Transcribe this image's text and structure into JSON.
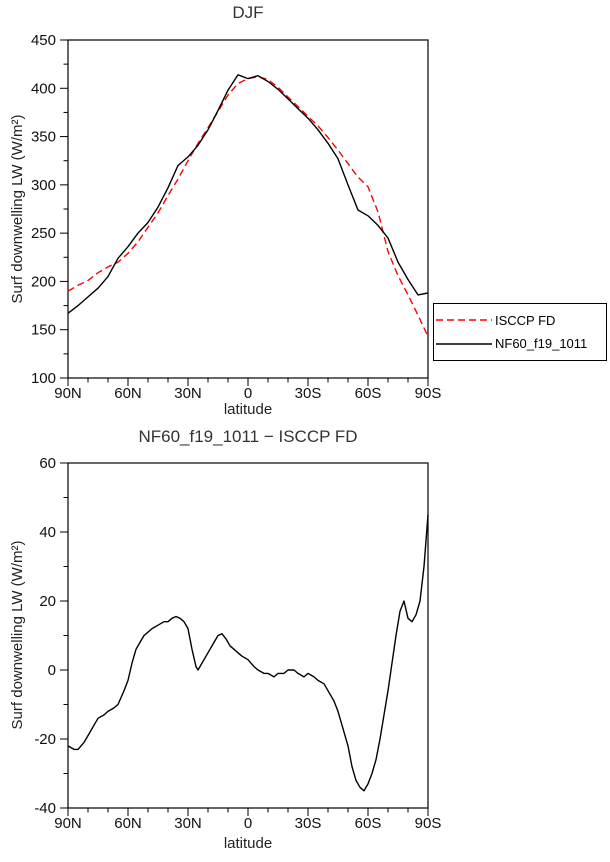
{
  "page": {
    "background": "#ffffff"
  },
  "chart_data": [
    {
      "type": "line",
      "title": "DJF",
      "xlabel": "latitude",
      "ylabel": "Surf downwelling LW (W/m²)",
      "xlim": [
        90,
        -90
      ],
      "ylim": [
        100,
        450
      ],
      "yticks": [
        100,
        150,
        200,
        250,
        300,
        350,
        400,
        450
      ],
      "xticks": {
        "values": [
          90,
          60,
          30,
          0,
          -30,
          -60,
          -90
        ],
        "labels": [
          "90N",
          "60N",
          "30N",
          "0",
          "30S",
          "60S",
          "90S"
        ]
      },
      "grid": false,
      "legend": {
        "position": "outside-right",
        "entries": [
          {
            "label": "ISCCP FD",
            "color": "#ff0000",
            "style": "dashed"
          },
          {
            "label": "NF60_f19_1011",
            "color": "#000000",
            "style": "solid"
          }
        ]
      },
      "x": [
        90,
        85,
        80,
        75,
        70,
        65,
        60,
        55,
        50,
        45,
        40,
        35,
        30,
        25,
        20,
        15,
        10,
        5,
        0,
        -5,
        -10,
        -15,
        -20,
        -25,
        -30,
        -35,
        -40,
        -45,
        -50,
        -55,
        -60,
        -65,
        -70,
        -75,
        -80,
        -85,
        -90
      ],
      "series": [
        {
          "name": "ISCCP FD",
          "color": "#ff0000",
          "style": "dashed",
          "values": [
            190,
            196,
            201,
            209,
            215,
            220,
            229,
            241,
            256,
            271,
            289,
            306,
            325,
            343,
            359,
            376,
            393,
            405,
            410,
            412,
            409,
            401,
            391,
            381,
            371,
            361,
            349,
            336,
            322,
            308,
            298,
            272,
            231,
            206,
            186,
            165,
            143
          ]
        },
        {
          "name": "NF60_f19_1011",
          "color": "#000000",
          "style": "solid",
          "values": [
            167,
            175,
            184,
            193,
            205,
            224,
            236,
            250,
            261,
            277,
            297,
            320,
            329,
            341,
            357,
            377,
            398,
            414,
            410,
            413,
            407,
            399,
            389,
            379,
            369,
            357,
            343,
            327,
            300,
            274,
            268,
            258,
            245,
            220,
            202,
            186,
            188
          ]
        }
      ]
    },
    {
      "type": "line",
      "title": "NF60_f19_1011 − ISCCP FD",
      "xlabel": "latitude",
      "ylabel": "Surf downwelling LW (W/m²)",
      "xlim": [
        90,
        -90
      ],
      "ylim": [
        -40,
        60
      ],
      "yticks": [
        -40,
        -20,
        0,
        20,
        40,
        60
      ],
      "xticks": {
        "values": [
          90,
          60,
          30,
          0,
          -30,
          -60,
          -90
        ],
        "labels": [
          "90N",
          "60N",
          "30N",
          "0",
          "30S",
          "60S",
          "90S"
        ]
      },
      "grid": false,
      "x": [
        90,
        87,
        85,
        82,
        80,
        77,
        75,
        72,
        70,
        67,
        65,
        62,
        60,
        58,
        56,
        54,
        52,
        50,
        48,
        45,
        42,
        40,
        38,
        36,
        34,
        32,
        30,
        28,
        26,
        25,
        23,
        21,
        19,
        17,
        15,
        13,
        11,
        9,
        7,
        5,
        3,
        0,
        -3,
        -5,
        -8,
        -10,
        -13,
        -15,
        -18,
        -20,
        -23,
        -25,
        -28,
        -30,
        -33,
        -35,
        -38,
        -40,
        -43,
        -45,
        -47,
        -50,
        -52,
        -54,
        -56,
        -58,
        -60,
        -62,
        -64,
        -66,
        -68,
        -70,
        -72,
        -74,
        -76,
        -78,
        -80,
        -82,
        -84,
        -86,
        -88,
        -90
      ],
      "series": [
        {
          "name": "NF60_f19_1011 minus ISCCP FD",
          "color": "#000000",
          "style": "solid",
          "values": [
            -22,
            -23,
            -23,
            -21,
            -19,
            -16,
            -14,
            -13,
            -12,
            -11,
            -10,
            -6,
            -3,
            2,
            6,
            8,
            10,
            11,
            12,
            13,
            14,
            14,
            15,
            15.5,
            15,
            14,
            12,
            6,
            1,
            0,
            2,
            4,
            6,
            8,
            10,
            10.5,
            9,
            7,
            6,
            5,
            4,
            3,
            1,
            0,
            -1,
            -1,
            -2,
            -1,
            -1,
            0,
            0,
            -1,
            -2,
            -1,
            -2,
            -3,
            -4,
            -6,
            -9,
            -12,
            -16,
            -22,
            -28,
            -32,
            -34,
            -35,
            -33,
            -30,
            -26,
            -20,
            -13,
            -6,
            2,
            10,
            17,
            20,
            15,
            14,
            16,
            20,
            30,
            45
          ]
        }
      ]
    }
  ]
}
